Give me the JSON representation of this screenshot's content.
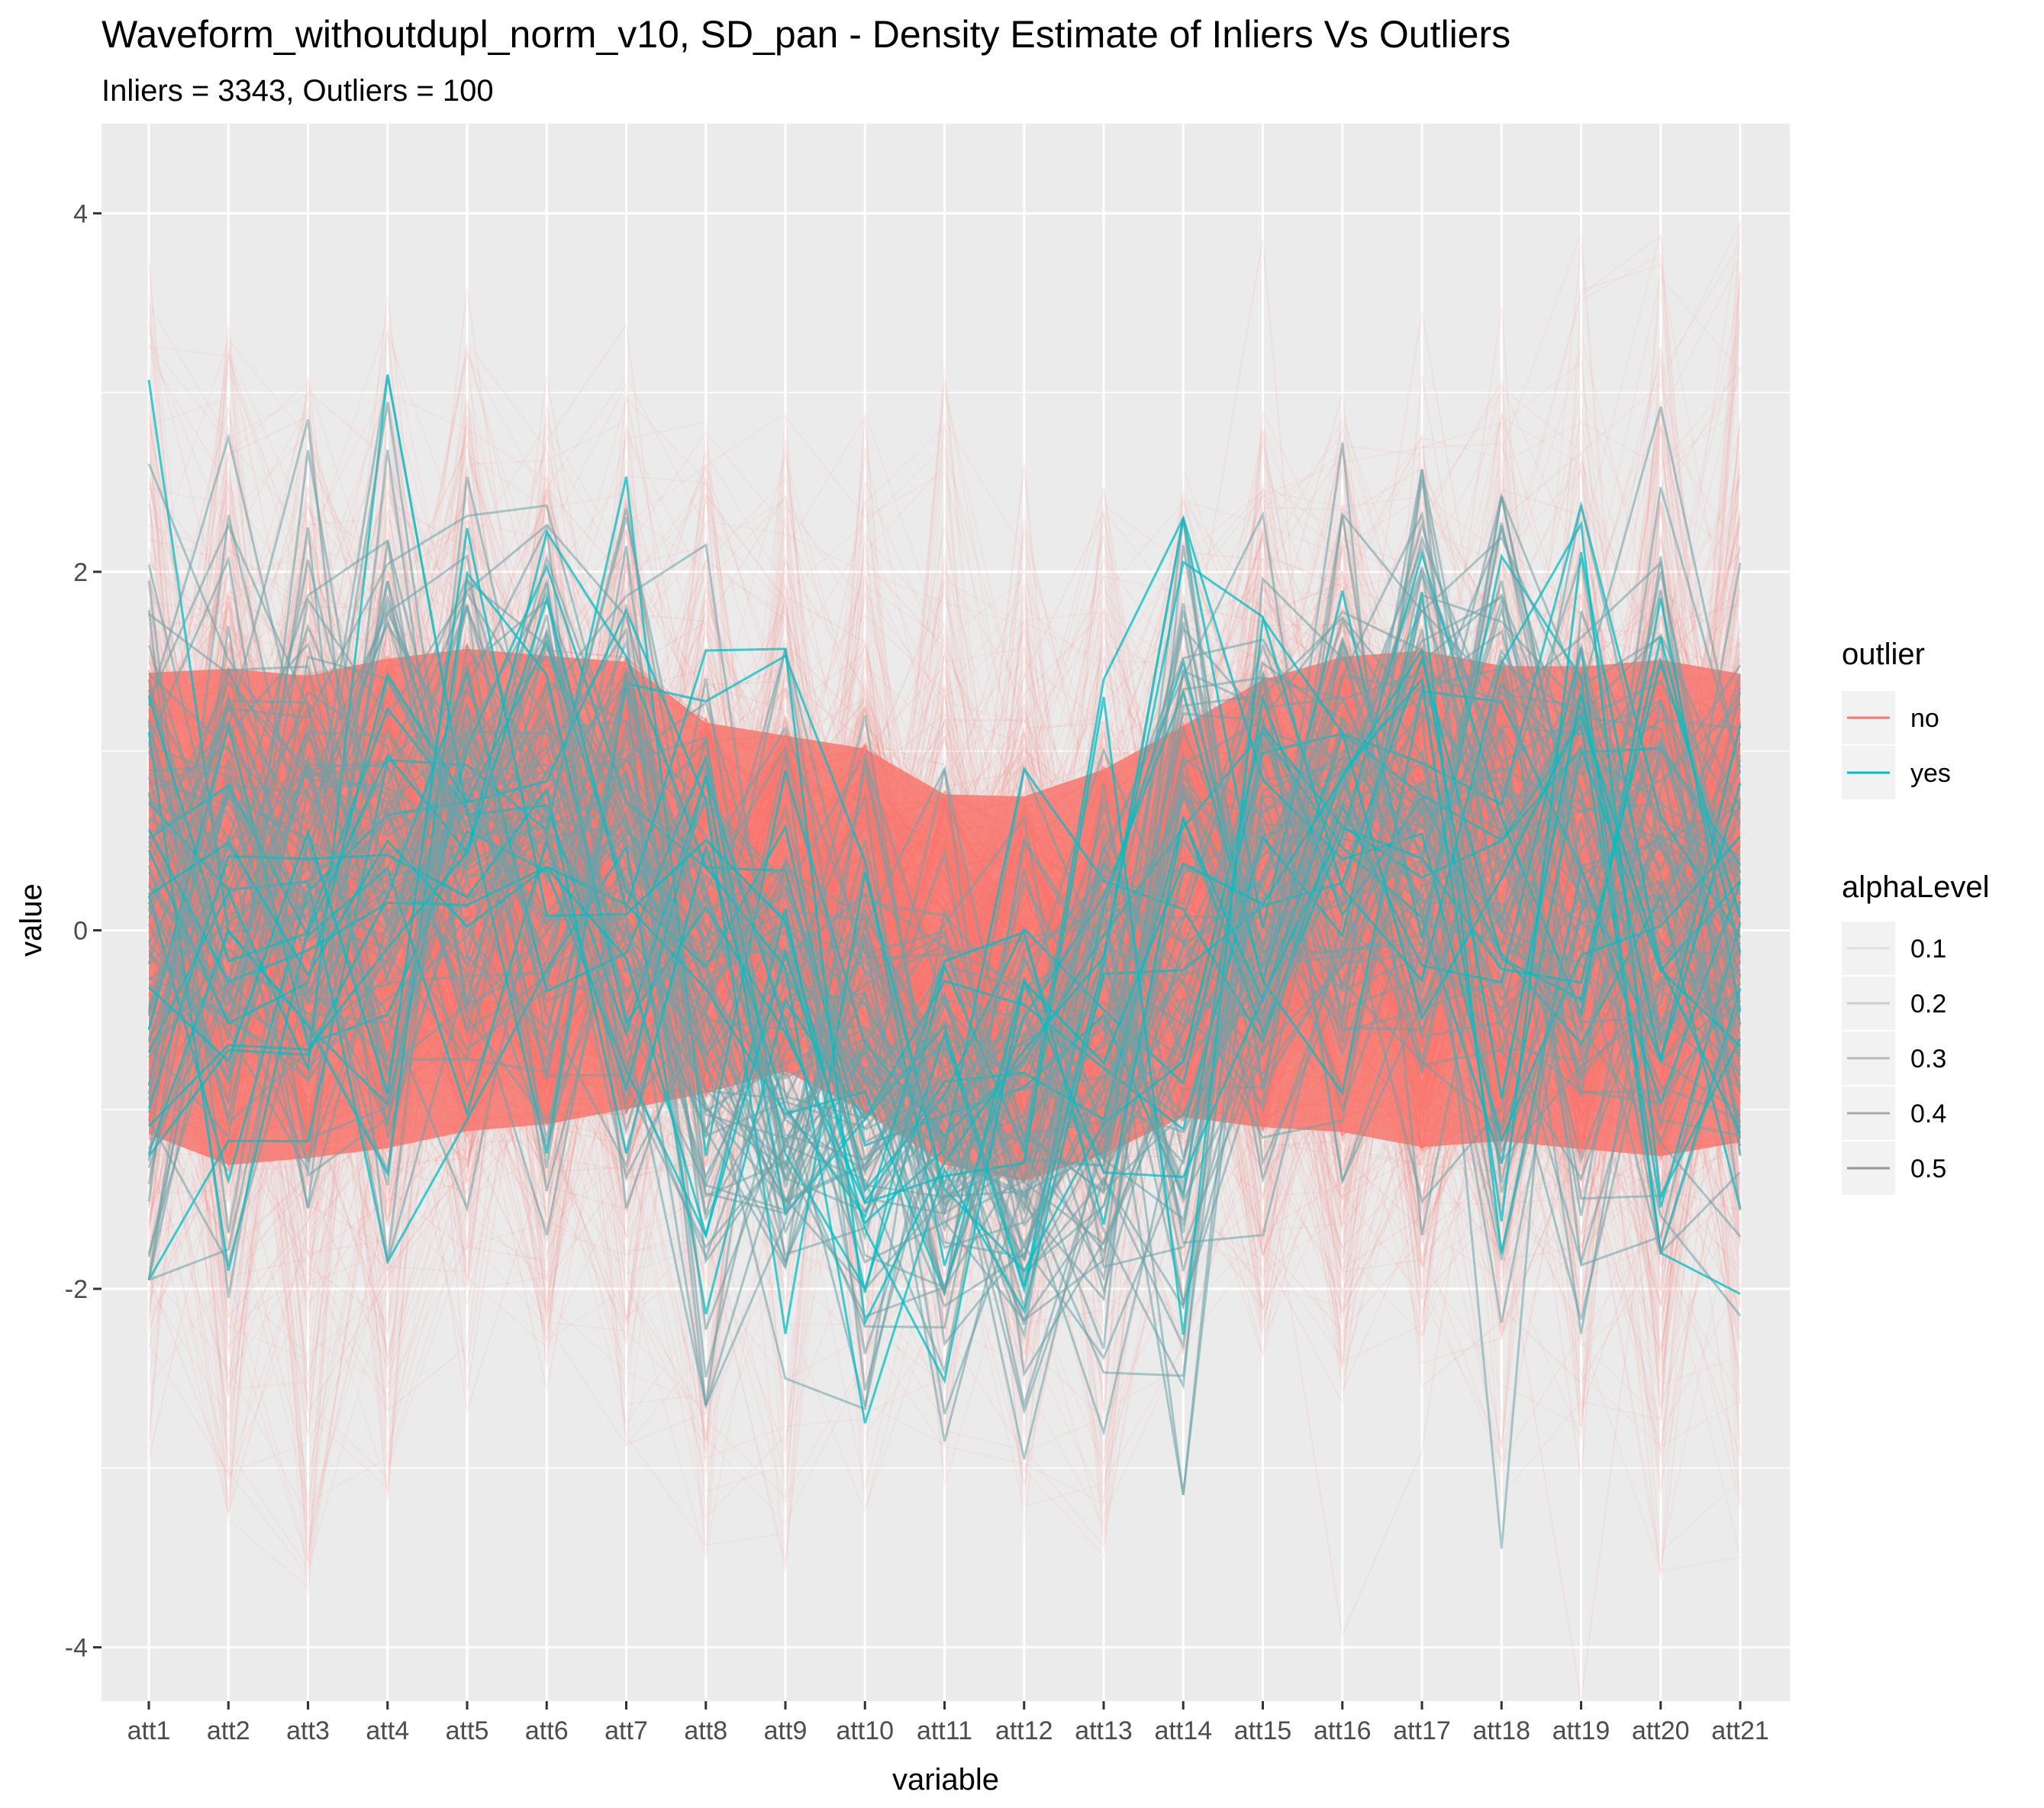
{
  "chart_data": {
    "type": "line",
    "title": "Waveform_withoutdupl_norm_v10, SD_pan - Density Estimate of Inliers Vs Outliers",
    "subtitle": "Inliers = 3343, Outliers = 100",
    "xlabel": "variable",
    "ylabel": "value",
    "categories": [
      "att1",
      "att2",
      "att3",
      "att4",
      "att5",
      "att6",
      "att7",
      "att8",
      "att9",
      "att10",
      "att11",
      "att12",
      "att13",
      "att14",
      "att15",
      "att16",
      "att17",
      "att18",
      "att19",
      "att20",
      "att21"
    ],
    "ylim": [
      -4.3,
      4.5
    ],
    "yticks": [
      -4,
      -2,
      0,
      2,
      4
    ],
    "grid": true,
    "legend_position": "right",
    "colors": {
      "no": "#F8766D",
      "yes": "#00BFC4",
      "panel": "#EBEBEB",
      "grid": "#FFFFFF",
      "alpha": "#7F7F7F"
    },
    "legends": [
      {
        "title": "outlier",
        "entries": [
          "no",
          "yes"
        ]
      },
      {
        "title": "alphaLevel",
        "entries": [
          "0.1",
          "0.2",
          "0.3",
          "0.4",
          "0.5"
        ]
      }
    ],
    "series": [
      {
        "group": "no",
        "count": 3343,
        "mean": [
          0.25,
          -0.02,
          -0.1,
          -0.22,
          -0.12,
          -0.18,
          -0.12,
          0.15,
          0.38,
          0.32,
          0.12,
          -0.12,
          0.25,
          0.35,
          -0.08,
          -0.05,
          -0.12,
          -0.15,
          -0.12,
          0.0,
          0.18
        ],
        "band_low": [
          -1.5,
          -1.7,
          -1.65,
          -1.6,
          -1.5,
          -1.45,
          -1.35,
          -1.2,
          -1.05,
          -1.3,
          -1.6,
          -1.7,
          -1.55,
          -1.35,
          -1.45,
          -1.5,
          -1.6,
          -1.55,
          -1.6,
          -1.65,
          -1.55
        ],
        "band_high": [
          1.8,
          1.85,
          1.8,
          1.9,
          1.95,
          1.9,
          1.85,
          1.45,
          1.35,
          1.3,
          1.05,
          1.05,
          1.2,
          1.45,
          1.75,
          1.9,
          1.95,
          1.85,
          1.85,
          1.9,
          1.8
        ],
        "min": [
          -2.9,
          -3.3,
          -3.9,
          -3.2,
          -2.2,
          -2.5,
          -2.9,
          -3.5,
          -3.8,
          -3.3,
          -3.1,
          -3.4,
          -3.5,
          -2.5,
          -2.4,
          -2.5,
          -2.3,
          -3.2,
          -2.9,
          -3.6,
          -3.5
        ],
        "max": [
          3.8,
          3.4,
          3.1,
          3.5,
          3.3,
          2.9,
          3.1,
          2.9,
          2.9,
          2.9,
          3.2,
          2.7,
          2.5,
          2.6,
          2.9,
          2.9,
          2.8,
          3.2,
          3.9,
          4.0,
          4.0
        ]
      },
      {
        "group": "yes",
        "count": 100,
        "mean": [
          0.0,
          0.2,
          0.3,
          0.5,
          0.6,
          0.4,
          0.3,
          -0.4,
          -0.6,
          -0.8,
          -1.0,
          -1.1,
          -0.6,
          -0.3,
          0.4,
          0.6,
          0.7,
          0.4,
          0.3,
          0.2,
          -0.1
        ],
        "band_low": [
          -1.95,
          -2.05,
          -1.55,
          -1.85,
          -1.55,
          -1.7,
          -1.55,
          -2.65,
          -2.5,
          -2.75,
          -2.85,
          -2.95,
          -2.8,
          -3.15,
          -1.7,
          -1.4,
          -1.7,
          -3.45,
          -2.25,
          -1.8,
          -2.15
        ],
        "band_high": [
          3.07,
          2.75,
          2.85,
          3.1,
          2.53,
          2.37,
          2.53,
          2.15,
          1.57,
          1.2,
          0.9,
          0.9,
          1.4,
          2.3,
          2.32,
          2.72,
          2.57,
          2.42,
          2.37,
          2.92,
          2.05
        ]
      }
    ]
  }
}
